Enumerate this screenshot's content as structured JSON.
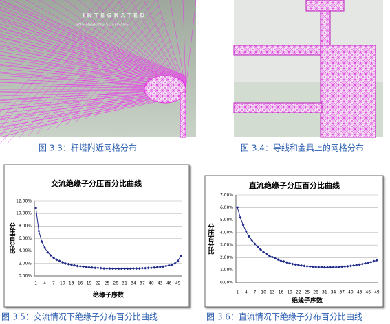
{
  "watermark": [
    "INTEGRATED",
    "ENGINEERING SOFTWARE"
  ],
  "captions": [
    "图 3.3：杆塔附近网格分布",
    "图 3.4：导线和金具上的网格分布",
    "图 3.5：交流情况下绝缘子分布百分比曲线",
    "图 3.6：直流情况下绝缘子分布百分比曲线"
  ],
  "chart_data": [
    {
      "type": "line",
      "title": "交流绝缘子分压百分比曲线",
      "x_label": "绝缘子序数",
      "y_label": "分压百分比",
      "color": "#1f2a8a",
      "grid": true,
      "categories": [
        "1",
        null,
        null,
        "4",
        null,
        null,
        "7",
        null,
        null,
        "10",
        null,
        null,
        "13",
        null,
        null,
        "16",
        null,
        null,
        "19",
        null,
        null,
        "22",
        null,
        null,
        "25",
        null,
        null,
        "28",
        null,
        null,
        "31",
        null,
        null,
        "34",
        null,
        null,
        "37",
        null,
        null,
        "40",
        null,
        null,
        "43",
        null,
        null,
        "46",
        null,
        null,
        "49",
        null
      ],
      "values": [
        10.9,
        7.2,
        5.5,
        4.5,
        3.8,
        3.3,
        2.9,
        2.6,
        2.4,
        2.2,
        2.0,
        1.9,
        1.8,
        1.7,
        1.6,
        1.55,
        1.5,
        1.45,
        1.4,
        1.35,
        1.3,
        1.3,
        1.25,
        1.2,
        1.2,
        1.2,
        1.15,
        1.15,
        1.15,
        1.15,
        1.15,
        1.15,
        1.15,
        1.2,
        1.2,
        1.2,
        1.25,
        1.25,
        1.3,
        1.3,
        1.35,
        1.4,
        1.45,
        1.5,
        1.6,
        1.7,
        1.8,
        2.0,
        2.4,
        3.2
      ],
      "ylim": [
        0,
        12
      ],
      "yticks": [
        {
          "value": 0,
          "label": "0.00%"
        },
        {
          "value": 2,
          "label": "2.00%"
        },
        {
          "value": 4,
          "label": "4.00%"
        },
        {
          "value": 6,
          "label": "6.00%"
        },
        {
          "value": 8,
          "label": "8.00%"
        },
        {
          "value": 10,
          "label": "10.00%"
        },
        {
          "value": 12,
          "label": "12.00%"
        }
      ]
    },
    {
      "type": "line",
      "title": "直流绝缘子分压百分比曲线",
      "x_label": "绝缘子序数",
      "y_label": "分压百分比",
      "color": "#1f2a8a",
      "grid": true,
      "categories": [
        "1",
        null,
        null,
        "4",
        null,
        null,
        "7",
        null,
        null,
        "10",
        null,
        null,
        "13",
        null,
        null,
        "16",
        null,
        null,
        "19",
        null,
        null,
        "22",
        null,
        null,
        "25",
        null,
        null,
        "28",
        null,
        null,
        "31",
        null,
        null,
        "34",
        null,
        null,
        "37",
        null,
        null,
        "40",
        null,
        null,
        "43",
        null,
        null,
        "46",
        null,
        null,
        "49"
      ],
      "values": [
        6.0,
        5.2,
        4.6,
        4.1,
        3.7,
        3.4,
        3.1,
        2.85,
        2.65,
        2.45,
        2.3,
        2.15,
        2.05,
        1.95,
        1.85,
        1.75,
        1.7,
        1.62,
        1.55,
        1.5,
        1.45,
        1.42,
        1.38,
        1.35,
        1.32,
        1.3,
        1.28,
        1.26,
        1.25,
        1.25,
        1.24,
        1.24,
        1.24,
        1.25,
        1.25,
        1.26,
        1.28,
        1.3,
        1.32,
        1.35,
        1.38,
        1.42,
        1.45,
        1.5,
        1.55,
        1.6,
        1.65,
        1.72,
        1.8
      ],
      "ylim": [
        0,
        7
      ],
      "yticks": [
        {
          "value": 0,
          "label": "0.00%"
        },
        {
          "value": 1,
          "label": "1.00%"
        },
        {
          "value": 2,
          "label": "2.00%"
        },
        {
          "value": 3,
          "label": "3.00%"
        },
        {
          "value": 4,
          "label": "4.00%"
        },
        {
          "value": 5,
          "label": "5.00%"
        },
        {
          "value": 6,
          "label": "6.00%"
        },
        {
          "value": 7,
          "label": "7.00%"
        }
      ]
    }
  ]
}
